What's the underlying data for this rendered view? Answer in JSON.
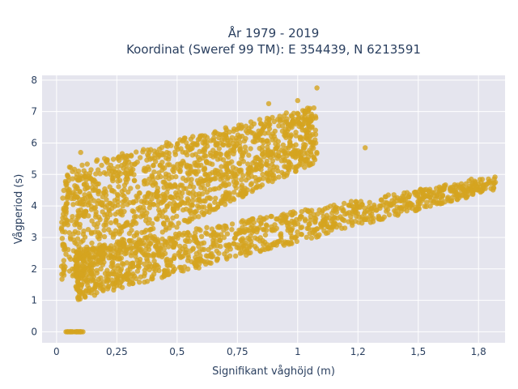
{
  "chart_data": {
    "type": "scatter",
    "title_lines": [
      "År 1979 - 2019",
      "Koordinat (Sweref 99 TM): E 354439, N 6213591"
    ],
    "xlabel": "Signifikant våghöjd (m)",
    "ylabel": "Vågperiod (s)",
    "xlim": [
      -0.06,
      1.86
    ],
    "ylim": [
      -0.35,
      8.15
    ],
    "x_ticks": [
      {
        "value": 0,
        "label": "0"
      },
      {
        "value": 0.25,
        "label": "0,25"
      },
      {
        "value": 0.5,
        "label": "0,5"
      },
      {
        "value": 0.75,
        "label": "0,75"
      },
      {
        "value": 1,
        "label": "1"
      },
      {
        "value": 1.25,
        "label": "1,2"
      },
      {
        "value": 1.5,
        "label": "1,5"
      },
      {
        "value": 1.75,
        "label": "1,8"
      }
    ],
    "y_ticks": [
      {
        "value": 0,
        "label": "0"
      },
      {
        "value": 1,
        "label": "1"
      },
      {
        "value": 2,
        "label": "2"
      },
      {
        "value": 3,
        "label": "3"
      },
      {
        "value": 4,
        "label": "4"
      },
      {
        "value": 5,
        "label": "5"
      },
      {
        "value": 6,
        "label": "6"
      },
      {
        "value": 7,
        "label": "7"
      },
      {
        "value": 8,
        "label": "8"
      }
    ],
    "grid": true,
    "marker_color": "#d4a41f",
    "background_color": "#e5e5ee",
    "point_count": 2600,
    "clusters": [
      {
        "name": "zero-period",
        "x": [
          0.03,
          0.11
        ],
        "y": [
          0,
          0
        ]
      },
      {
        "name": "upper-branch",
        "x": [
          0.02,
          1.08
        ],
        "y_low": [
          1.6,
          5.4
        ],
        "y_high": [
          5.2,
          7.2
        ]
      },
      {
        "name": "lower-branch",
        "x": [
          0.08,
          1.82
        ],
        "y_low": [
          1.0,
          4.5
        ],
        "y_high": [
          2.6,
          4.95
        ]
      }
    ],
    "outliers": [
      {
        "x": 1.08,
        "y": 7.75
      },
      {
        "x": 1.05,
        "y": 7.1
      },
      {
        "x": 1.28,
        "y": 5.85
      },
      {
        "x": 1.76,
        "y": 4.75
      },
      {
        "x": 1.82,
        "y": 4.75
      },
      {
        "x": 1.72,
        "y": 4.85
      },
      {
        "x": 0.1,
        "y": 5.7
      },
      {
        "x": 0.88,
        "y": 7.25
      },
      {
        "x": 1.0,
        "y": 7.35
      }
    ]
  }
}
